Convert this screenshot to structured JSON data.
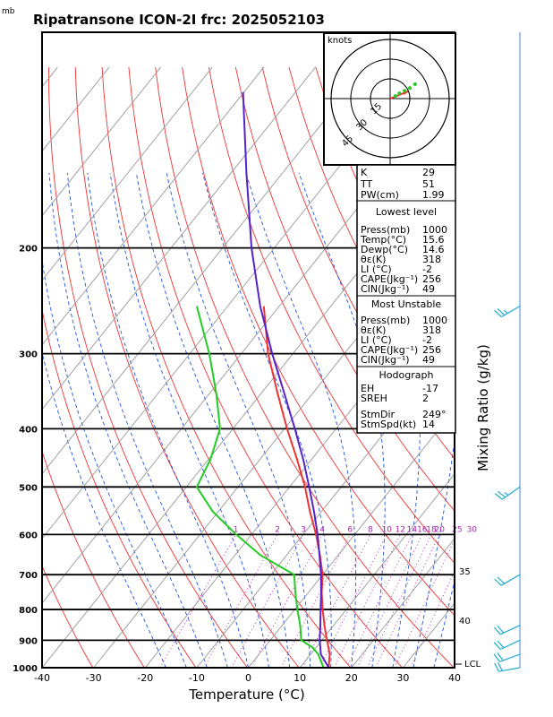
{
  "header": {
    "title": "Ripatransone ICON-2I frc: 2025052103",
    "pressure_unit": "mb"
  },
  "axes": {
    "xlabel": "Temperature (°C)",
    "ylabel_right": "Mixing Ratio (g/kg)",
    "x_ticks": [
      -40,
      -30,
      -20,
      -10,
      0,
      10,
      20,
      30,
      40
    ],
    "p_ticks": [
      200,
      300,
      400,
      500,
      600,
      700,
      800,
      900,
      1000
    ],
    "lcl_label": "LCL"
  },
  "mixing_ratio_labels": [
    "1",
    "2",
    "3",
    "4",
    "6",
    "8",
    "10",
    "12",
    "14",
    "16",
    "18",
    "20",
    "25",
    "30"
  ],
  "wind_side_labels": [
    "35",
    "40"
  ],
  "hodograph": {
    "unit": "knots",
    "ring_labels": [
      "15",
      "30",
      "45"
    ]
  },
  "indices": {
    "top": [
      {
        "k": "K",
        "v": "29"
      },
      {
        "k": "TT",
        "v": "51"
      },
      {
        "k": "PW(cm)",
        "v": "1.99"
      }
    ],
    "lowest": {
      "title": "Lowest level",
      "rows": [
        {
          "k": "Press(mb)",
          "v": "1000"
        },
        {
          "k": "Temp(°C)",
          "v": "15.6"
        },
        {
          "k": "Dewp(°C)",
          "v": "14.6"
        },
        {
          "k": "θε(K)",
          "v": "318"
        },
        {
          "k": "LI (°C)",
          "v": "-2"
        },
        {
          "k": "CAPE(Jkg⁻¹)",
          "v": "256"
        },
        {
          "k": "CIN(Jkg⁻¹)",
          "v": "49"
        }
      ]
    },
    "unstable": {
      "title": "Most Unstable",
      "rows": [
        {
          "k": "Press(mb)",
          "v": "1000"
        },
        {
          "k": "θε(K)",
          "v": "318"
        },
        {
          "k": "LI (°C)",
          "v": "-2"
        },
        {
          "k": "CAPE(Jkg⁻¹)",
          "v": "256"
        },
        {
          "k": "CIN(Jkg⁻¹)",
          "v": "49"
        }
      ]
    },
    "hodo": {
      "title": "Hodograph",
      "rows": [
        {
          "k": "EH",
          "v": "-17"
        },
        {
          "k": "SREH",
          "v": "2"
        },
        {
          "k": "StmDir",
          "v": "249°"
        },
        {
          "k": "StmSpd(kt)",
          "v": "14"
        }
      ]
    }
  },
  "colors": {
    "temperature": "#ee3333",
    "dewpoint": "#22cc22",
    "parcel": "#5522cc",
    "dry_adiabat": "#ee3333",
    "moist_adiabat": "#2255dd",
    "mixing_ratio": "#aa22aa",
    "wind": "#22aacc"
  },
  "chart_data": {
    "type": "line",
    "xlabel": "Temperature (°C)",
    "ylabel": "",
    "xlim": [
      -40,
      40
    ],
    "ylim_pressure": [
      1000,
      100
    ],
    "log_pressure": true,
    "series": [
      {
        "key": "temperature",
        "p": [
          1000,
          950,
          925,
          900,
          850,
          800,
          750,
          700,
          650,
          600,
          550,
          500,
          450,
          400,
          350,
          300,
          250
        ],
        "t": [
          15.6,
          13.7,
          12.4,
          11.0,
          8.2,
          5.4,
          2.6,
          0.0,
          -3.5,
          -7.5,
          -12.2,
          -17.0,
          -22.8,
          -29.5,
          -36.7,
          -44.8,
          -53.0
        ]
      },
      {
        "key": "dewpoint",
        "p": [
          1000,
          950,
          925,
          900,
          850,
          800,
          750,
          700,
          650,
          600,
          550,
          500,
          450,
          400,
          350,
          300,
          250
        ],
        "t": [
          14.6,
          11.5,
          9.3,
          6.0,
          3.5,
          0.5,
          -2.5,
          -5.5,
          -15.0,
          -23.0,
          -31.0,
          -38.0,
          -39.6,
          -42.5,
          -48.6,
          -56.2,
          -66.0
        ]
      },
      {
        "key": "parcel",
        "p": [
          1000,
          950,
          900,
          850,
          800,
          750,
          700,
          650,
          600,
          550,
          500,
          450,
          400,
          350,
          300,
          250,
          200,
          150,
          110
        ],
        "t": [
          15.6,
          12.0,
          9.6,
          7.4,
          5.0,
          2.5,
          -0.3,
          -3.6,
          -7.2,
          -11.4,
          -16.2,
          -21.6,
          -28.0,
          -35.4,
          -44.0,
          -53.7,
          -64.4,
          -77.0,
          -90.2
        ]
      }
    ],
    "wind_barbs": [
      {
        "p": 1000,
        "dir": 260,
        "spd": 20
      },
      {
        "p": 950,
        "dir": 250,
        "spd": 20
      },
      {
        "p": 900,
        "dir": 245,
        "spd": 20
      },
      {
        "p": 850,
        "dir": 245,
        "spd": 20
      },
      {
        "p": 700,
        "dir": 240,
        "spd": 20
      },
      {
        "p": 500,
        "dir": 235,
        "spd": 25
      },
      {
        "p": 250,
        "dir": 240,
        "spd": 25
      }
    ],
    "hodograph_points": [
      {
        "u": 4,
        "v": 2
      },
      {
        "u": 7,
        "v": 4
      },
      {
        "u": 11,
        "v": 6
      },
      {
        "u": 15,
        "v": 8
      },
      {
        "u": 19,
        "v": 11
      }
    ]
  }
}
